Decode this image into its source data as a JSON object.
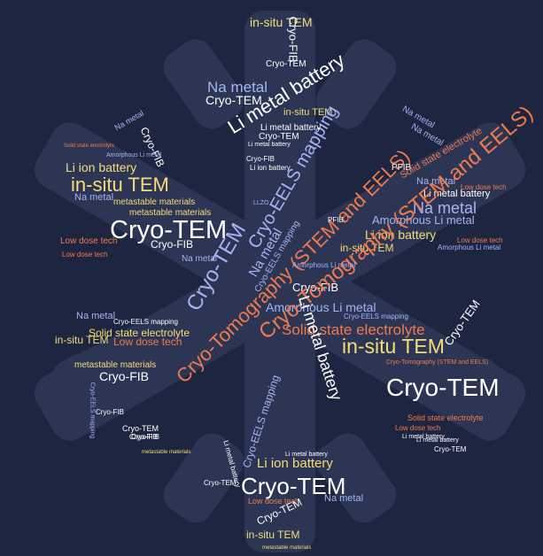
{
  "palette": {
    "background": "#1d2540",
    "shape": "#2c3654",
    "white": "#ffffff",
    "yellow": "#f5dc7a",
    "blue": "#a6b4f5",
    "orange": "#f07a4c"
  },
  "words": [
    {
      "text": "in-situ TEM"
    },
    {
      "text": "Cryo-FIB"
    },
    {
      "text": "Cryo-TEM"
    },
    {
      "text": "Na metal"
    },
    {
      "text": "Li metal battery"
    },
    {
      "text": "Cryo-TEM"
    },
    {
      "text": "in-situ TEM"
    },
    {
      "text": "Cryo-EELS mapping"
    },
    {
      "text": "Li metal battery"
    },
    {
      "text": "Cryo-TEM"
    },
    {
      "text": "Li metal battery"
    },
    {
      "text": "Cryo-FIB"
    },
    {
      "text": "Na metal"
    },
    {
      "text": "Cryo-FIB"
    },
    {
      "text": "Li ion battery"
    },
    {
      "text": "in-situ TEM"
    },
    {
      "text": "Na metal"
    },
    {
      "text": "metastable materials"
    },
    {
      "text": "metastable materials"
    },
    {
      "text": "Cryo-TEM"
    },
    {
      "text": "Cryo-FIB"
    },
    {
      "text": "Low dose tech"
    },
    {
      "text": "Low dose tech"
    },
    {
      "text": "Na metal"
    },
    {
      "text": "Amorphous Li metal"
    },
    {
      "text": "Solid state electrolyte"
    },
    {
      "text": "Na metal"
    },
    {
      "text": "Na metal"
    },
    {
      "text": "Cryo-EELS mapping"
    },
    {
      "text": "Cryo-Tomography (STEM and EELS)"
    },
    {
      "text": "Na metal"
    },
    {
      "text": "Cryo-TEM"
    },
    {
      "text": "PFIB"
    },
    {
      "text": "Solid state electrolyte"
    },
    {
      "text": "Na metal"
    },
    {
      "text": "Li metal battery"
    },
    {
      "text": "Na metal"
    },
    {
      "text": "Amorphous Li metal"
    },
    {
      "text": "Li ion battery"
    },
    {
      "text": "Low dose tech"
    },
    {
      "text": "in-situ TEM"
    },
    {
      "text": "Low dose tech"
    },
    {
      "text": "Amorphous Li metal"
    },
    {
      "text": "Cryo-FIB"
    },
    {
      "text": "Amorphous Li metal"
    },
    {
      "text": "Cryo-EELS mapping"
    },
    {
      "text": "Solid state electrolyte"
    },
    {
      "text": "in-situ TEM"
    },
    {
      "text": "Cryo-TEM"
    },
    {
      "text": "Cryo-Tomography (STEM and EELS)"
    },
    {
      "text": "Cryo-Tomography (STEM and EELS)"
    },
    {
      "text": "Cryo-TEM"
    },
    {
      "text": "Na metal"
    },
    {
      "text": "Cryo-EELS mapping"
    },
    {
      "text": "Solid state electrolyte"
    },
    {
      "text": "in-situ TEM"
    },
    {
      "text": "Low dose tech"
    },
    {
      "text": "metastable materials"
    },
    {
      "text": "Cryo-FIB"
    },
    {
      "text": "Cryo-EELS mapping"
    },
    {
      "text": "Cryo-FIB"
    },
    {
      "text": "Cryo-FIB"
    },
    {
      "text": "Li metal battery"
    },
    {
      "text": "Cryo-EELS mapping"
    },
    {
      "text": "Li ion battery"
    },
    {
      "text": "Cryo-TEM"
    },
    {
      "text": "Low dose tech"
    },
    {
      "text": "Cryo-TEM"
    },
    {
      "text": "Na metal"
    },
    {
      "text": "in-situ TEM"
    },
    {
      "text": "Li metal battery"
    },
    {
      "text": "Cryo-TEM"
    },
    {
      "text": "LLZO"
    },
    {
      "text": "PFIB"
    },
    {
      "text": "Li ion battery"
    },
    {
      "text": "Li metal battery"
    },
    {
      "text": "Cryo-FIB"
    },
    {
      "text": "Cryo-TEM"
    },
    {
      "text": "Cryo-TEM"
    },
    {
      "text": "Li metal battery"
    },
    {
      "text": "Solid state electrolyte"
    },
    {
      "text": "Amorphous Li metal"
    },
    {
      "text": "Low dose tech"
    },
    {
      "text": "metastable materials"
    },
    {
      "text": "metastable materials"
    },
    {
      "text": "Li metal battery"
    }
  ]
}
